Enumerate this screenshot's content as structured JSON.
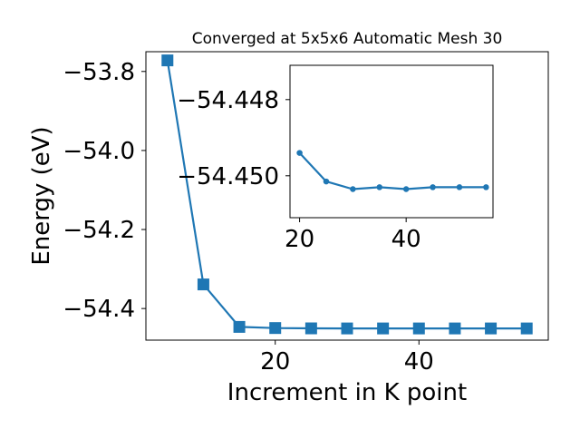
{
  "chart_data": [
    {
      "type": "line",
      "title": "Converged at 5x5x6 Automatic Mesh 30",
      "xlabel": "Increment in K point",
      "ylabel": "Energy (eV)",
      "xlim": [
        2,
        58
      ],
      "ylim": [
        -54.48,
        -53.75
      ],
      "xticks": [
        20,
        40
      ],
      "yticks": [
        -53.8,
        -54.0,
        -54.2,
        -54.4
      ],
      "ytick_labels": [
        "−53.8",
        "−54.0",
        "−54.2",
        "−54.4"
      ],
      "grid": false,
      "marker": "square",
      "series": [
        {
          "x": [
            5,
            10,
            15,
            20,
            25,
            30,
            35,
            40,
            45,
            50,
            55
          ],
          "y": [
            -53.772,
            -54.339,
            -54.4465,
            -54.4494,
            -54.4502,
            -54.4504,
            -54.4504,
            -54.4504,
            -54.4504,
            -54.4504,
            -54.4504
          ],
          "color": "#1f77b4"
        }
      ]
    },
    {
      "type": "line",
      "title": "",
      "xlabel": "",
      "ylabel": "",
      "xlim": [
        18.2,
        56.3
      ],
      "ylim": [
        -54.4511,
        -54.4471
      ],
      "xticks": [
        20,
        40
      ],
      "yticks": [
        -54.45,
        -54.448
      ],
      "ytick_labels": [
        "−54.450",
        "−54.448"
      ],
      "grid": false,
      "marker": "circle",
      "series": [
        {
          "x": [
            20,
            25,
            30,
            35,
            40,
            45,
            50,
            55
          ],
          "y": [
            -54.4494,
            -54.45015,
            -54.45035,
            -54.4503,
            -54.45035,
            -54.4503,
            -54.4503,
            -54.4503
          ],
          "color": "#1f77b4"
        }
      ]
    }
  ]
}
